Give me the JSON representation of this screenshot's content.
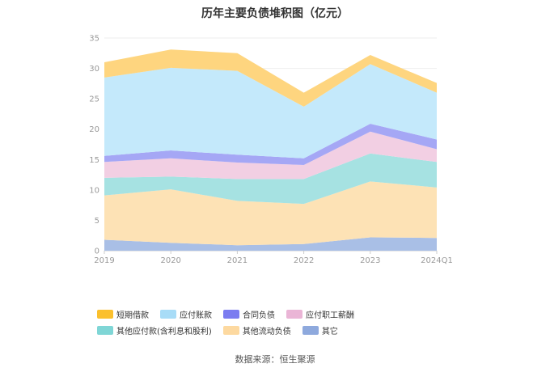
{
  "chart_data": {
    "type": "area",
    "stacked": true,
    "title": "历年主要负债堆积图（亿元）",
    "categories": [
      "2019",
      "2020",
      "2021",
      "2022",
      "2023",
      "2024Q1"
    ],
    "ylim": [
      0,
      35
    ],
    "yticks": [
      0,
      5,
      10,
      15,
      20,
      25,
      30,
      35
    ],
    "grid": true,
    "legend_position": "bottom",
    "series": [
      {
        "name": "其它",
        "color": "#a9bfe6",
        "values": [
          1.8,
          1.3,
          0.9,
          1.1,
          2.2,
          2.1
        ]
      },
      {
        "name": "其他流动负债",
        "color": "#fde2b5",
        "values": [
          7.3,
          8.8,
          7.3,
          6.6,
          9.2,
          8.3
        ]
      },
      {
        "name": "其他应付款(含利息和股利)",
        "color": "#a6e2e2",
        "values": [
          2.9,
          2.1,
          3.6,
          4.1,
          4.6,
          4.2
        ]
      },
      {
        "name": "应付职工薪酬",
        "color": "#f2cfe3",
        "values": [
          2.6,
          3.0,
          2.7,
          2.3,
          3.6,
          2.1
        ]
      },
      {
        "name": "合同负债",
        "color": "#a5a7f5",
        "values": [
          1.0,
          1.3,
          1.3,
          1.1,
          1.3,
          1.6
        ]
      },
      {
        "name": "应付账款",
        "color": "#c4e9fb",
        "values": [
          12.9,
          13.6,
          13.8,
          8.5,
          9.8,
          7.7
        ]
      },
      {
        "name": "短期借款",
        "color": "#fed57f",
        "values": [
          2.5,
          3.0,
          2.9,
          2.3,
          1.5,
          1.6
        ]
      }
    ],
    "legend_colors": {
      "短期借款": "#fbc02d",
      "应付账款": "#a8dcf7",
      "合同负债": "#7b7cf0",
      "应付职工薪酬": "#eab5d6",
      "其他应付款(含利息和股利)": "#7fd6d6",
      "其他流动负债": "#fdd9a0",
      "其它": "#8ea9dd"
    },
    "legend_order": [
      "短期借款",
      "应付账款",
      "合同负债",
      "应付职工薪酬",
      "其他应付款(含利息和股利)",
      "其他流动负债",
      "其它"
    ]
  },
  "source": "数据来源：恒生聚源"
}
